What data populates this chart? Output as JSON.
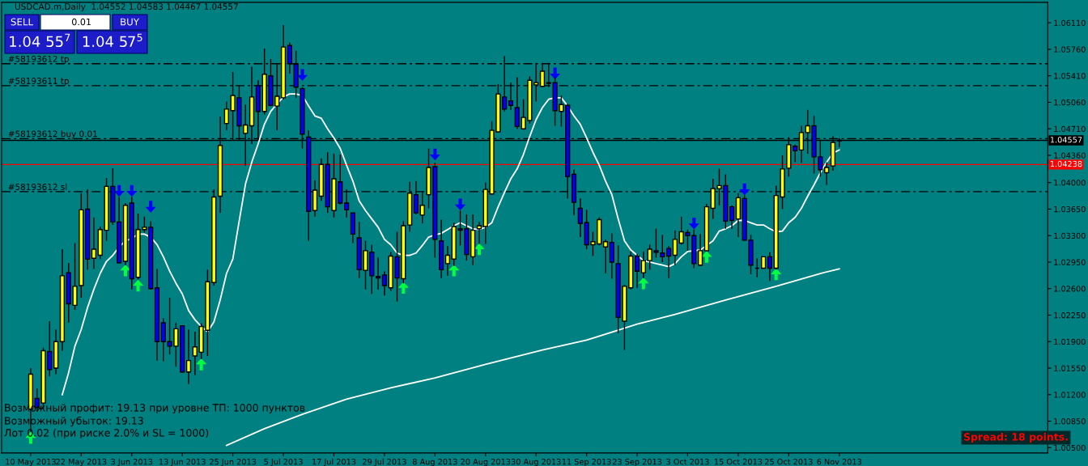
{
  "chart_data": {
    "type": "candlestick",
    "title": "USDCAD.m,Daily  1.04552 1.04583 1.04467 1.04557",
    "categories": [
      "10 May 2013",
      null,
      null,
      null,
      null,
      null,
      null,
      null,
      "22 May 2013",
      null,
      null,
      null,
      null,
      null,
      null,
      null,
      "3 Jun 2013",
      null,
      null,
      null,
      null,
      null,
      null,
      null,
      "13 Jun 2013",
      null,
      null,
      null,
      null,
      null,
      null,
      null,
      "25 Jun 2013",
      null,
      null,
      null,
      null,
      null,
      null,
      null,
      "5 Jul 2013",
      null,
      null,
      null,
      null,
      null,
      null,
      null,
      "17 Jul 2013",
      null,
      null,
      null,
      null,
      null,
      null,
      null,
      "29 Jul 2013",
      null,
      null,
      null,
      null,
      null,
      null,
      null,
      "8 Aug 2013",
      null,
      null,
      null,
      null,
      null,
      null,
      null,
      "20 Aug 2013",
      null,
      null,
      null,
      null,
      null,
      null,
      null,
      "30 Aug 2013",
      null,
      null,
      null,
      null,
      null,
      null,
      null,
      "11 Sep 2013",
      null,
      null,
      null,
      null,
      null,
      null,
      null,
      "23 Sep 2013",
      null,
      null,
      null,
      null,
      null,
      null,
      null,
      "3 Oct 2013",
      null,
      null,
      null,
      null,
      null,
      null,
      null,
      "15 Oct 2013",
      null,
      null,
      null,
      null,
      null,
      null,
      null,
      "25 Oct 2013",
      null,
      null,
      null,
      null,
      null,
      null,
      null,
      "6 Nov 2013"
    ],
    "ohlc": [
      [
        1.0101,
        1.0155,
        1.0071,
        1.0147
      ],
      [
        1.0115,
        1.0128,
        1.0098,
        1.0103
      ],
      [
        1.0109,
        1.0182,
        1.0101,
        1.0178
      ],
      [
        1.0177,
        1.0217,
        1.0144,
        1.0153
      ],
      [
        1.0155,
        1.0206,
        1.0147,
        1.019
      ],
      [
        1.019,
        1.0312,
        1.0178,
        1.0277
      ],
      [
        1.0281,
        1.0294,
        1.0215,
        1.024
      ],
      [
        1.0238,
        1.032,
        1.0232,
        1.0263
      ],
      [
        1.0264,
        1.0386,
        1.0248,
        1.0364
      ],
      [
        1.0365,
        1.0391,
        1.0285,
        1.0299
      ],
      [
        1.03,
        1.0354,
        1.0286,
        1.0312
      ],
      [
        1.0304,
        1.0342,
        1.0299,
        1.0338
      ],
      [
        1.0337,
        1.0406,
        1.0323,
        1.0395
      ],
      [
        1.0395,
        1.0419,
        1.0344,
        1.0348
      ],
      [
        1.0348,
        1.0381,
        1.0293,
        1.0294
      ],
      [
        1.0296,
        1.0373,
        1.0291,
        1.037
      ],
      [
        1.0373,
        1.0381,
        1.0259,
        1.0273
      ],
      [
        1.0275,
        1.0359,
        1.0272,
        1.0338
      ],
      [
        1.0338,
        1.0355,
        1.0334,
        1.0341
      ],
      [
        1.0341,
        1.0349,
        1.0259,
        1.026
      ],
      [
        1.0261,
        1.0286,
        1.0165,
        1.019
      ],
      [
        1.0215,
        1.0221,
        1.0164,
        1.019
      ],
      [
        1.019,
        1.0248,
        1.0173,
        1.0184
      ],
      [
        1.0184,
        1.0215,
        1.0157,
        1.0207
      ],
      [
        1.0211,
        1.0211,
        1.0149,
        1.015
      ],
      [
        1.015,
        1.0206,
        1.0134,
        1.0165
      ],
      [
        1.0171,
        1.0203,
        1.0146,
        1.0183
      ],
      [
        1.0176,
        1.0214,
        1.0167,
        1.021
      ],
      [
        1.0205,
        1.0285,
        1.0171,
        1.0269
      ],
      [
        1.0268,
        1.0391,
        1.0264,
        1.0381
      ],
      [
        1.0382,
        1.0487,
        1.036,
        1.0449
      ],
      [
        1.0478,
        1.0507,
        1.0469,
        1.0497
      ],
      [
        1.0495,
        1.0546,
        1.0456,
        1.0515
      ],
      [
        1.0512,
        1.0528,
        1.0456,
        1.0475
      ],
      [
        1.0465,
        1.0503,
        1.0422,
        1.0476
      ],
      [
        1.0475,
        1.0553,
        1.0451,
        1.0513
      ],
      [
        1.0528,
        1.0535,
        1.0456,
        1.0494
      ],
      [
        1.0494,
        1.0577,
        1.049,
        1.0543
      ],
      [
        1.0541,
        1.0563,
        1.0501,
        1.0502
      ],
      [
        1.0501,
        1.0557,
        1.0469,
        1.0514
      ],
      [
        1.0512,
        1.0608,
        1.051,
        1.0579
      ],
      [
        1.0581,
        1.0585,
        1.0544,
        1.0557
      ],
      [
        1.0556,
        1.0574,
        1.0512,
        1.0526
      ],
      [
        1.0524,
        1.0526,
        1.0445,
        1.0464
      ],
      [
        1.046,
        1.0469,
        1.0323,
        1.0362
      ],
      [
        1.0363,
        1.0403,
        1.0355,
        1.039
      ],
      [
        1.0382,
        1.0432,
        1.0376,
        1.0424
      ],
      [
        1.0424,
        1.044,
        1.036,
        1.0368
      ],
      [
        1.0363,
        1.0438,
        1.0354,
        1.0405
      ],
      [
        1.0401,
        1.0437,
        1.0371,
        1.0373
      ],
      [
        1.0373,
        1.0391,
        1.0354,
        1.0364
      ],
      [
        1.036,
        1.036,
        1.032,
        1.0332
      ],
      [
        1.0327,
        1.0348,
        1.0274,
        1.0285
      ],
      [
        1.0284,
        1.0323,
        1.0259,
        1.031
      ],
      [
        1.0308,
        1.0318,
        1.0253,
        1.0277
      ],
      [
        1.0276,
        1.0301,
        1.0259,
        1.0274
      ],
      [
        1.0278,
        1.0283,
        1.0251,
        1.0264
      ],
      [
        1.0261,
        1.0308,
        1.0257,
        1.0303
      ],
      [
        1.0302,
        1.0335,
        1.0243,
        1.0274
      ],
      [
        1.0273,
        1.0349,
        1.0267,
        1.0343
      ],
      [
        1.0344,
        1.0401,
        1.0335,
        1.0386
      ],
      [
        1.0384,
        1.0402,
        1.0358,
        1.036
      ],
      [
        1.0357,
        1.0388,
        1.0346,
        1.037
      ],
      [
        1.0384,
        1.0445,
        1.0366,
        1.042
      ],
      [
        1.0421,
        1.0426,
        1.0301,
        1.0325
      ],
      [
        1.0323,
        1.0351,
        1.0274,
        1.0285
      ],
      [
        1.0293,
        1.0316,
        1.0277,
        1.0304
      ],
      [
        1.0299,
        1.0347,
        1.029,
        1.0342
      ],
      [
        1.0339,
        1.0363,
        1.0317,
        1.0337
      ],
      [
        1.0339,
        1.0358,
        1.0297,
        1.0305
      ],
      [
        1.0302,
        1.0358,
        1.0291,
        1.0337
      ],
      [
        1.0339,
        1.0348,
        1.0319,
        1.0343
      ],
      [
        1.0342,
        1.04,
        1.0319,
        1.0391
      ],
      [
        1.0385,
        1.0481,
        1.0384,
        1.0469
      ],
      [
        1.0467,
        1.053,
        1.0466,
        1.0517
      ],
      [
        1.0513,
        1.0567,
        1.0494,
        1.0497
      ],
      [
        1.0508,
        1.0532,
        1.0496,
        1.0502
      ],
      [
        1.0499,
        1.0539,
        1.0471,
        1.0474
      ],
      [
        1.0471,
        1.051,
        1.047,
        1.0486
      ],
      [
        1.0482,
        1.054,
        1.0478,
        1.0535
      ],
      [
        1.0529,
        1.0558,
        1.0507,
        1.0532
      ],
      [
        1.0527,
        1.0558,
        1.0526,
        1.0547
      ],
      [
        1.0532,
        1.0558,
        1.0526,
        1.0531
      ],
      [
        1.0532,
        1.0539,
        1.0475,
        1.0495
      ],
      [
        1.0494,
        1.0515,
        1.0474,
        1.0503
      ],
      [
        1.0502,
        1.0504,
        1.0379,
        1.0408
      ],
      [
        1.0411,
        1.0417,
        1.0357,
        1.0374
      ],
      [
        1.0366,
        1.0379,
        1.0328,
        1.0346
      ],
      [
        1.0347,
        1.0364,
        1.0312,
        1.0318
      ],
      [
        1.0318,
        1.0335,
        1.0303,
        1.0322
      ],
      [
        1.0319,
        1.0354,
        1.0317,
        1.0351
      ],
      [
        1.0315,
        1.0325,
        1.028,
        1.0322
      ],
      [
        1.0321,
        1.0333,
        1.0273,
        1.0295
      ],
      [
        1.0293,
        1.0317,
        1.0201,
        1.0222
      ],
      [
        1.0217,
        1.0265,
        1.0179,
        1.0263
      ],
      [
        1.0261,
        1.0309,
        1.0259,
        1.0303
      ],
      [
        1.0303,
        1.0306,
        1.0261,
        1.0283
      ],
      [
        1.0281,
        1.0309,
        1.0274,
        1.0297
      ],
      [
        1.0297,
        1.0318,
        1.0285,
        1.0312
      ],
      [
        1.031,
        1.0339,
        1.0301,
        1.0308
      ],
      [
        1.0307,
        1.0331,
        1.0295,
        1.0302
      ],
      [
        1.0313,
        1.0316,
        1.0274,
        1.0303
      ],
      [
        1.0304,
        1.0337,
        1.0291,
        1.0325
      ],
      [
        1.032,
        1.0355,
        1.0318,
        1.0335
      ],
      [
        1.0334,
        1.0338,
        1.031,
        1.033
      ],
      [
        1.033,
        1.0338,
        1.0287,
        1.0293
      ],
      [
        1.0291,
        1.0332,
        1.029,
        1.031
      ],
      [
        1.031,
        1.0372,
        1.0309,
        1.0368
      ],
      [
        1.0366,
        1.0405,
        1.0352,
        1.0392
      ],
      [
        1.0392,
        1.0418,
        1.037,
        1.0396
      ],
      [
        1.0396,
        1.0411,
        1.0339,
        1.0349
      ],
      [
        1.0368,
        1.037,
        1.0339,
        1.035
      ],
      [
        1.0352,
        1.0386,
        1.0328,
        1.038
      ],
      [
        1.0379,
        1.0384,
        1.0323,
        1.0324
      ],
      [
        1.0324,
        1.0331,
        1.0279,
        1.0291
      ],
      [
        1.0287,
        1.03,
        1.0275,
        1.0287
      ],
      [
        1.0287,
        1.0302,
        1.0287,
        1.0302
      ],
      [
        1.0302,
        1.0308,
        1.027,
        1.0287
      ],
      [
        1.0287,
        1.0396,
        1.0285,
        1.0383
      ],
      [
        1.0381,
        1.0436,
        1.0365,
        1.0418
      ],
      [
        1.0419,
        1.046,
        1.0408,
        1.045
      ],
      [
        1.0448,
        1.045,
        1.0427,
        1.0442
      ],
      [
        1.0443,
        1.0475,
        1.0426,
        1.0466
      ],
      [
        1.0466,
        1.0496,
        1.0438,
        1.0475
      ],
      [
        1.0475,
        1.0488,
        1.0412,
        1.0434
      ],
      [
        1.0434,
        1.0456,
        1.0408,
        1.0417
      ],
      [
        1.0413,
        1.0427,
        1.0397,
        1.042
      ],
      [
        1.0422,
        1.0461,
        1.0416,
        1.0453
      ],
      [
        1.04552,
        1.04583,
        1.04467,
        1.04557
      ]
    ],
    "colors": [
      "#ffff00",
      "#0000ff",
      "#ffff00",
      "#0000ff",
      "#ffff00",
      "#ffff00",
      "#0000ff",
      "#ffff00",
      "#ffff00",
      "#0000ff",
      "#ffff00",
      "#ffff00",
      "#ffff00",
      "#0000ff",
      "#0000ff",
      "#ffff00",
      "#0000ff",
      "#ffff00",
      "#ffff00",
      "#0000ff",
      "#0000ff",
      "#0000ff",
      "#0000ff",
      "#ffff00",
      "#0000ff",
      "#ffff00",
      "#ffff00",
      "#ffff00",
      "#ffff00",
      "#ffff00",
      "#ffff00",
      "#ffff00",
      "#ffff00",
      "#0000ff",
      "#ffff00",
      "#ffff00",
      "#0000ff",
      "#ffff00",
      "#0000ff",
      "#ffff00",
      "#ffff00",
      "#0000ff",
      "#0000ff",
      "#0000ff",
      "#0000ff",
      "#ffff00",
      "#ffff00",
      "#0000ff",
      "#ffff00",
      "#0000ff",
      "#0000ff",
      "#0000ff",
      "#0000ff",
      "#ffff00",
      "#0000ff",
      "#0000ff",
      "#0000ff",
      "#ffff00",
      "#0000ff",
      "#ffff00",
      "#ffff00",
      "#0000ff",
      "#ffff00",
      "#ffff00",
      "#0000ff",
      "#0000ff",
      "#ffff00",
      "#ffff00",
      "#0000ff",
      "#0000ff",
      "#ffff00",
      "#ffff00",
      "#ffff00",
      "#ffff00",
      "#ffff00",
      "#0000ff",
      "#0000ff",
      "#0000ff",
      "#ffff00",
      "#ffff00",
      "#ffff00",
      "#ffff00",
      "#ffff00",
      "#0000ff",
      "#ffff00",
      "#0000ff",
      "#0000ff",
      "#0000ff",
      "#0000ff",
      "#ffff00",
      "#ffff00",
      "#ffff00",
      "#0000ff",
      "#0000ff",
      "#ffff00",
      "#ffff00",
      "#0000ff",
      "#ffff00",
      "#ffff00",
      "#0000ff",
      "#0000ff",
      "#0000ff",
      "#ffff00",
      "#ffff00",
      "#0000ff",
      "#0000ff",
      "#ffff00",
      "#ffff00",
      "#ffff00",
      "#ffff00",
      "#0000ff",
      "#0000ff",
      "#ffff00",
      "#0000ff",
      "#0000ff",
      "#000000",
      "#ffff00",
      "#0000ff",
      "#ffff00",
      "#ffff00",
      "#ffff00",
      "#0000ff",
      "#ffff00",
      "#ffff00",
      "#0000ff",
      "#0000ff",
      "#ffff00",
      "#ffff00",
      "#ffff00"
    ],
    "series": [
      {
        "type": "line",
        "color": "#ffffff",
        "marker": "none",
        "values": [
          null,
          null,
          null,
          null,
          null,
          1.012,
          1.0149,
          1.0184,
          1.0206,
          1.0235,
          1.0259,
          1.028,
          1.0296,
          1.0304,
          1.0315,
          1.0323,
          1.0326,
          1.0332,
          1.0332,
          1.0328,
          1.0318,
          1.0302,
          1.0283,
          1.0267,
          1.0253,
          1.0231,
          1.0219,
          1.021,
          1.0203,
          1.0216,
          1.0245,
          1.028,
          1.0299,
          1.0349,
          1.0398,
          1.0427,
          1.0451,
          1.0477,
          1.0494,
          1.0504,
          1.0513,
          1.0517,
          1.0517,
          1.0515,
          1.0501,
          1.0488,
          1.0485,
          1.0471,
          1.0459,
          1.0445,
          1.0423,
          1.0402,
          1.0376,
          1.0363,
          1.0352,
          1.0341,
          1.0325,
          1.0318,
          1.0307,
          1.0304,
          1.0304,
          1.0307,
          1.0317,
          1.0328,
          1.0331,
          1.0333,
          1.0338,
          1.0343,
          1.0347,
          1.0343,
          1.0339,
          1.0338,
          1.0341,
          1.0347,
          1.0368,
          1.0387,
          1.0405,
          1.0418,
          1.0437,
          1.0461,
          1.0483,
          1.0499,
          1.051,
          1.0512,
          1.0512,
          1.0501,
          1.0488,
          1.0477,
          1.0459,
          1.044,
          1.0423,
          1.0402,
          1.0384,
          1.0352,
          1.0323,
          1.0311,
          1.0304,
          1.0297,
          1.0295,
          1.0293,
          1.0291,
          1.0289,
          1.0293,
          1.0302,
          1.0309,
          1.031,
          1.0311,
          1.0317,
          1.0323,
          1.0336,
          1.0339,
          1.0343,
          1.035,
          1.035,
          1.0347,
          1.0344,
          1.0344,
          1.0339,
          1.0335,
          1.0336,
          1.0347,
          1.0354,
          1.0366,
          1.0382,
          1.0397,
          1.0413,
          1.0427,
          1.0439,
          1.0443
        ]
      },
      {
        "type": "line",
        "color": "#ffffff",
        "marker": "none",
        "values": [
          null,
          null,
          null,
          null,
          null,
          null,
          null,
          null,
          null,
          null,
          null,
          null,
          null,
          null,
          null,
          null,
          null,
          null,
          null,
          null,
          null,
          null,
          null,
          null,
          null,
          null,
          null,
          null,
          null,
          null,
          null,
          1.0053,
          null,
          null,
          null,
          null,
          null,
          1.0075,
          null,
          null,
          null,
          null,
          null,
          1.0094,
          null,
          null,
          null,
          null,
          null,
          null,
          1.0114,
          null,
          null,
          null,
          null,
          null,
          null,
          1.0129,
          null,
          null,
          null,
          null,
          null,
          null,
          1.0142,
          null,
          null,
          null,
          null,
          null,
          null,
          null,
          1.016,
          null,
          null,
          null,
          null,
          null,
          null,
          null,
          null,
          1.0179,
          null,
          null,
          null,
          null,
          null,
          null,
          1.0192,
          null,
          null,
          null,
          null,
          null,
          null,
          null,
          1.0213,
          null,
          null,
          null,
          null,
          null,
          1.0226,
          null,
          null,
          null,
          null,
          null,
          null,
          null,
          1.0245,
          null,
          null,
          null,
          null,
          null,
          null,
          null,
          1.0263,
          null,
          null,
          null,
          null,
          null,
          null,
          1.028,
          null,
          null,
          1.0286
        ]
      },
      {
        "type": "scatter",
        "color": "#0000ff",
        "marker": "triangle",
        "values": [
          null,
          null,
          null,
          null,
          null,
          null,
          null,
          null,
          null,
          null,
          null,
          null,
          null,
          null,
          1.0389,
          null,
          1.0389,
          null,
          null,
          1.0368,
          null,
          null,
          null,
          null,
          null,
          null,
          null,
          null,
          null,
          null,
          null,
          null,
          null,
          null,
          null,
          null,
          null,
          null,
          null,
          null,
          null,
          null,
          null,
          1.0542,
          null,
          null,
          null,
          null,
          null,
          null,
          null,
          null,
          null,
          null,
          null,
          null,
          null,
          null,
          null,
          null,
          null,
          null,
          null,
          null,
          1.0437,
          null,
          null,
          null,
          1.0371,
          null,
          null,
          null,
          null,
          null,
          null,
          null,
          null,
          null,
          null,
          null,
          null,
          null,
          null,
          1.0544,
          null,
          null,
          null,
          null,
          null,
          null,
          null,
          null,
          null,
          null,
          null,
          null,
          null,
          null,
          null,
          null,
          null,
          null,
          null,
          null,
          null,
          1.0346,
          null,
          null,
          null,
          null,
          null,
          null,
          null,
          1.0391,
          null,
          null,
          null,
          null,
          null,
          null,
          null,
          null,
          null,
          null,
          null,
          null,
          null,
          null,
          null
        ]
      },
      {
        "type": "scatter",
        "color": "#00ff40",
        "marker": "triangle",
        "values": [
          1.0063,
          null,
          null,
          null,
          null,
          null,
          null,
          null,
          null,
          null,
          null,
          null,
          null,
          null,
          null,
          1.0284,
          null,
          1.0264,
          null,
          null,
          null,
          null,
          null,
          null,
          null,
          null,
          null,
          1.016,
          null,
          null,
          null,
          null,
          null,
          null,
          null,
          null,
          null,
          null,
          null,
          null,
          null,
          null,
          null,
          null,
          null,
          null,
          null,
          null,
          null,
          null,
          null,
          null,
          null,
          null,
          null,
          null,
          null,
          null,
          null,
          1.0261,
          null,
          null,
          null,
          null,
          null,
          null,
          null,
          1.0284,
          null,
          null,
          null,
          1.0312,
          null,
          null,
          null,
          null,
          null,
          null,
          null,
          null,
          null,
          null,
          null,
          null,
          null,
          null,
          null,
          null,
          null,
          null,
          null,
          null,
          null,
          null,
          null,
          null,
          null,
          1.0267,
          null,
          null,
          null,
          null,
          null,
          null,
          null,
          null,
          null,
          1.0302,
          null,
          null,
          null,
          null,
          null,
          null,
          null,
          null,
          null,
          null,
          1.0279,
          null,
          null,
          null,
          null,
          null,
          null,
          null,
          null,
          null,
          null
        ]
      }
    ],
    "ylim": [
      1.0043,
      1.0638
    ],
    "yticks": [
      {
        "value": 1.005,
        "label": "1.00500"
      },
      {
        "value": 1.0085,
        "label": "1.00850"
      },
      {
        "value": 1.012,
        "label": "1.01200"
      },
      {
        "value": 1.0155,
        "label": "1.01550"
      },
      {
        "value": 1.019,
        "label": "1.01900"
      },
      {
        "value": 1.0225,
        "label": "1.02250"
      },
      {
        "value": 1.026,
        "label": "1.02600"
      },
      {
        "value": 1.0295,
        "label": "1.02950"
      },
      {
        "value": 1.033,
        "label": "1.03300"
      },
      {
        "value": 1.0365,
        "label": "1.03650"
      },
      {
        "value": 1.04,
        "label": "1.04000"
      },
      {
        "value": 1.0436,
        "label": "1.04360"
      },
      {
        "value": 1.0471,
        "label": "1.04710"
      },
      {
        "value": 1.0506,
        "label": "1.05060"
      },
      {
        "value": 1.0541,
        "label": "1.05410"
      },
      {
        "value": 1.0576,
        "label": "1.05760"
      },
      {
        "value": 1.0611,
        "label": "1.06110"
      }
    ],
    "ref_lines": [
      {
        "axis": "y",
        "value": 1.0557,
        "label": "#58193612 tp",
        "color": "#000000",
        "line_style": "dashed"
      },
      {
        "axis": "y",
        "value": 1.0528,
        "label": "#58193611 tp",
        "color": "#000000",
        "line_style": "dashed"
      },
      {
        "axis": "y",
        "value": 1.0458,
        "label": "#58193612 buy 0.01",
        "color": "#000000",
        "line_style": "dashed"
      },
      {
        "axis": "y",
        "value": 1.0388,
        "label": "#58193612 sl",
        "color": "#000000",
        "line_style": "dashed"
      },
      {
        "axis": "y",
        "value": 1.04557,
        "label": "1.04557",
        "color": "#000000",
        "line_style": "solid"
      },
      {
        "axis": "y",
        "value": 1.04238,
        "label": "1.04238",
        "color": "#ff0000",
        "line_style": "solid"
      }
    ],
    "annotations": [
      "SELL",
      "0.01",
      "BUY",
      "1.04 55$^{7}$",
      "1.04 57$^{5}$",
      "Возможный профит: 19.13 при уровне ТП: 1000 пунктов",
      "Возможный убыток: 19.13",
      "Лот 0.02 (при риске 2.0% и SL = 1000)",
      "Spread: 18 points."
    ],
    "legend": false
  }
}
